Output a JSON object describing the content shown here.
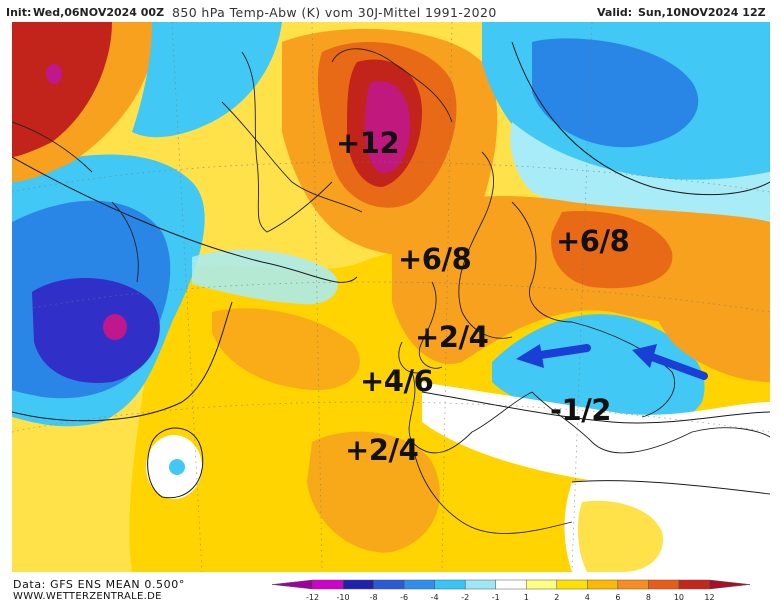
{
  "header": {
    "init_label": "Init:",
    "init_value": "Wed,06NOV2024 00Z",
    "title": "850 hPa Temp-Abw (K) vom 30J-Mittel 1991-2020",
    "valid_label": "Valid:",
    "valid_value": "Sun,10NOV2024 12Z"
  },
  "annotations": {
    "greenland": "+12",
    "scandinavia_west": "+6/8",
    "russia": "+6/8",
    "uk": "+2/4",
    "biscay": "+4/6",
    "iberia_west": "+2/4",
    "balkans": "-1/2"
  },
  "arrows": {
    "color": "#1a3fd6",
    "count": 2,
    "direction": "westward"
  },
  "footer": {
    "data": "Data: GFS ENS MEAN 0.500°",
    "site": "WWW.WETTERZENTRALE.DE"
  },
  "legend": {
    "ticks": [
      "-12",
      "-10",
      "-8",
      "-6",
      "-4",
      "-2",
      "-1",
      "1",
      "2",
      "4",
      "6",
      "8",
      "10",
      "12"
    ],
    "colors": [
      "#a0009c",
      "#d000c8",
      "#2020b0",
      "#2a5ad8",
      "#2f8ff0",
      "#34c6f4",
      "#9de7f7",
      "#ffffff",
      "#ffff80",
      "#ffe000",
      "#ffb800",
      "#f88c1c",
      "#e85c18",
      "#c4261a",
      "#a81028"
    ]
  },
  "colors": {
    "neg_deep": "#3030c8",
    "neg_mid": "#2a86e6",
    "neg_light": "#3ec8f4",
    "neg_pale": "#a8ecf8",
    "pos_pale": "#fff27a",
    "pos_yellow": "#ffd400",
    "pos_orange": "#f7a11e",
    "pos_dark": "#e86a16",
    "pos_red": "#c2241c",
    "pos_magenta": "#c0187c"
  }
}
